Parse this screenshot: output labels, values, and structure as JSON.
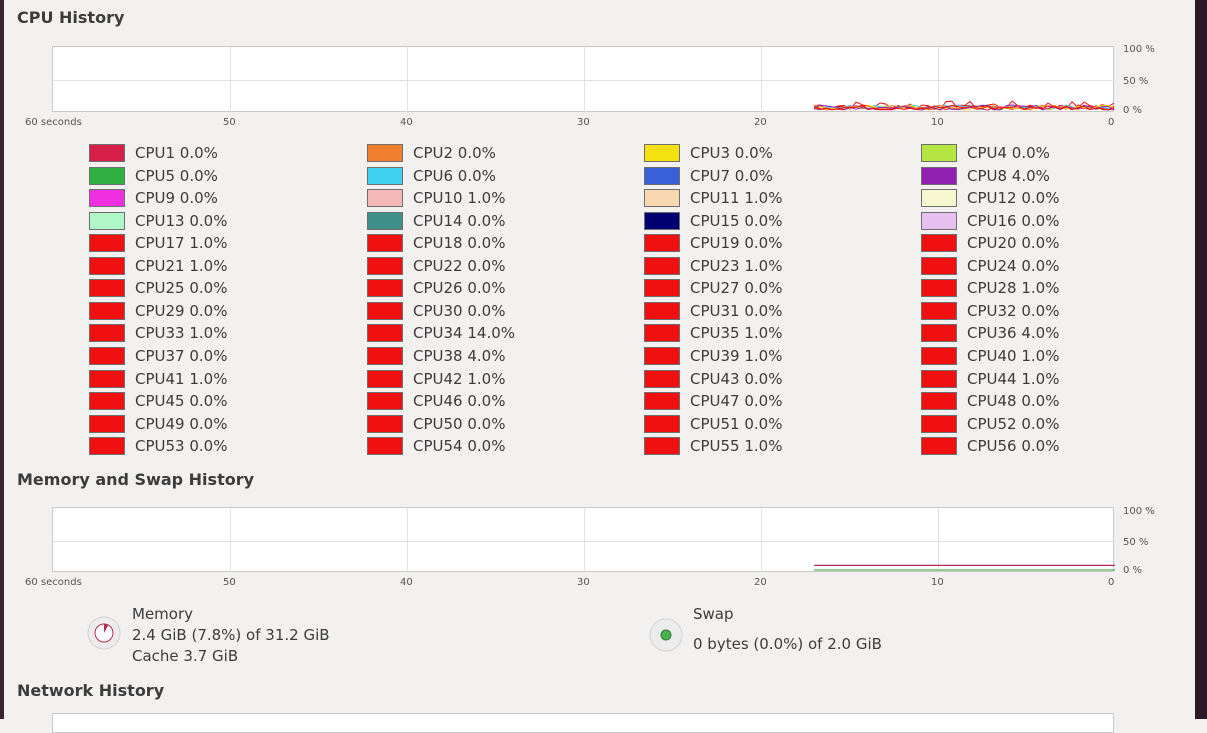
{
  "cpu_section": {
    "title": "CPU History",
    "y_labels": [
      "100 %",
      "50 %",
      "0 %"
    ],
    "x_labels": [
      "60 seconds",
      "50",
      "40",
      "30",
      "20",
      "10",
      "0"
    ],
    "legend": [
      {
        "label": "CPU1 0.0%",
        "color": "#d6204a"
      },
      {
        "label": "CPU2 0.0%",
        "color": "#f08030"
      },
      {
        "label": "CPU3 0.0%",
        "color": "#f5e010"
      },
      {
        "label": "CPU4 0.0%",
        "color": "#b5e540"
      },
      {
        "label": "CPU5 0.0%",
        "color": "#30b040"
      },
      {
        "label": "CPU6 0.0%",
        "color": "#40d0f0"
      },
      {
        "label": "CPU7 0.0%",
        "color": "#3a60d8"
      },
      {
        "label": "CPU8 4.0%",
        "color": "#9020b0"
      },
      {
        "label": "CPU9 0.0%",
        "color": "#f030e0"
      },
      {
        "label": "CPU10 1.0%",
        "color": "#f5b8b8"
      },
      {
        "label": "CPU11 1.0%",
        "color": "#f8d8b0"
      },
      {
        "label": "CPU12 0.0%",
        "color": "#f8f8d0"
      },
      {
        "label": "CPU13 0.0%",
        "color": "#b0f8c8"
      },
      {
        "label": "CPU14 0.0%",
        "color": "#40908a"
      },
      {
        "label": "CPU15 0.0%",
        "color": "#000070"
      },
      {
        "label": "CPU16 0.0%",
        "color": "#e8c0f0"
      },
      {
        "label": "CPU17 1.0%",
        "color": "#f01010"
      },
      {
        "label": "CPU18 0.0%",
        "color": "#f01010"
      },
      {
        "label": "CPU19 0.0%",
        "color": "#f01010"
      },
      {
        "label": "CPU20 0.0%",
        "color": "#f01010"
      },
      {
        "label": "CPU21 1.0%",
        "color": "#f01010"
      },
      {
        "label": "CPU22 0.0%",
        "color": "#f01010"
      },
      {
        "label": "CPU23 1.0%",
        "color": "#f01010"
      },
      {
        "label": "CPU24 0.0%",
        "color": "#f01010"
      },
      {
        "label": "CPU25 0.0%",
        "color": "#f01010"
      },
      {
        "label": "CPU26 0.0%",
        "color": "#f01010"
      },
      {
        "label": "CPU27 0.0%",
        "color": "#f01010"
      },
      {
        "label": "CPU28 1.0%",
        "color": "#f01010"
      },
      {
        "label": "CPU29 0.0%",
        "color": "#f01010"
      },
      {
        "label": "CPU30 0.0%",
        "color": "#f01010"
      },
      {
        "label": "CPU31 0.0%",
        "color": "#f01010"
      },
      {
        "label": "CPU32 0.0%",
        "color": "#f01010"
      },
      {
        "label": "CPU33 1.0%",
        "color": "#f01010"
      },
      {
        "label": "CPU34 14.0%",
        "color": "#f01010"
      },
      {
        "label": "CPU35 1.0%",
        "color": "#f01010"
      },
      {
        "label": "CPU36 4.0%",
        "color": "#f01010"
      },
      {
        "label": "CPU37 0.0%",
        "color": "#f01010"
      },
      {
        "label": "CPU38 4.0%",
        "color": "#f01010"
      },
      {
        "label": "CPU39 1.0%",
        "color": "#f01010"
      },
      {
        "label": "CPU40 1.0%",
        "color": "#f01010"
      },
      {
        "label": "CPU41 1.0%",
        "color": "#f01010"
      },
      {
        "label": "CPU42 1.0%",
        "color": "#f01010"
      },
      {
        "label": "CPU43 0.0%",
        "color": "#f01010"
      },
      {
        "label": "CPU44 1.0%",
        "color": "#f01010"
      },
      {
        "label": "CPU45 0.0%",
        "color": "#f01010"
      },
      {
        "label": "CPU46 0.0%",
        "color": "#f01010"
      },
      {
        "label": "CPU47 0.0%",
        "color": "#f01010"
      },
      {
        "label": "CPU48 0.0%",
        "color": "#f01010"
      },
      {
        "label": "CPU49 0.0%",
        "color": "#f01010"
      },
      {
        "label": "CPU50 0.0%",
        "color": "#f01010"
      },
      {
        "label": "CPU51 0.0%",
        "color": "#f01010"
      },
      {
        "label": "CPU52 0.0%",
        "color": "#f01010"
      },
      {
        "label": "CPU53 0.0%",
        "color": "#f01010"
      },
      {
        "label": "CPU54 0.0%",
        "color": "#f01010"
      },
      {
        "label": "CPU55 1.0%",
        "color": "#f01010"
      },
      {
        "label": "CPU56 0.0%",
        "color": "#f01010"
      }
    ]
  },
  "memory_section": {
    "title": "Memory and Swap History",
    "y_labels": [
      "100 %",
      "50 %",
      "0 %"
    ],
    "x_labels": [
      "60 seconds",
      "50",
      "40",
      "30",
      "20",
      "10",
      "0"
    ],
    "memory": {
      "label": "Memory",
      "usage": "2.4 GiB (7.8%) of 31.2 GiB",
      "cache": "Cache 3.7 GiB",
      "fraction": 0.078,
      "color": "#b5294e"
    },
    "swap": {
      "label": "Swap",
      "usage": "0 bytes (0.0%) of 2.0 GiB",
      "fraction": 0.0,
      "color": "#4caf50"
    }
  },
  "network_section": {
    "title": "Network History"
  }
}
